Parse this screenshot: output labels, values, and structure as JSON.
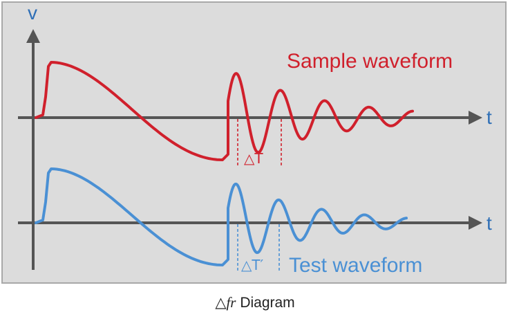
{
  "diagram": {
    "axis_v_label": "v",
    "axis_t_label_top": "t",
    "axis_t_label_bottom": "t",
    "sample": {
      "label": "Sample waveform",
      "period_label": "△T"
    },
    "test": {
      "label": "Test waveform",
      "period_label": "△T′"
    }
  },
  "caption": {
    "symbol": "△",
    "italic": "fr",
    "text": " Diagram"
  },
  "colors": {
    "panel_bg": "#dcdcdc",
    "panel_border": "#a8a8a8",
    "axis": "#555555",
    "v_label": "#2f6fb6",
    "t_label": "#2f6fb6",
    "sample": "#d0202c",
    "test": "#4a90d4"
  }
}
